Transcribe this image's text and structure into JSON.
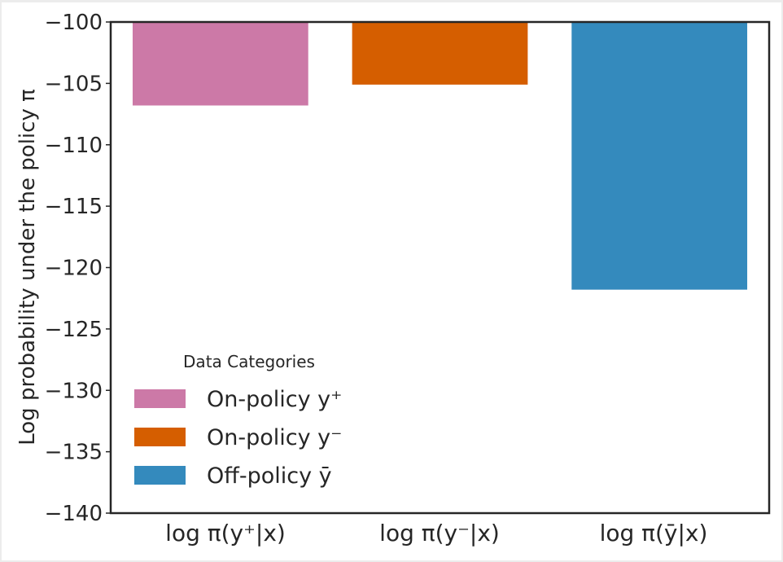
{
  "chart_data": {
    "type": "bar",
    "categories": [
      "log π(y⁺|x)",
      "log π(y⁻|x)",
      "log π(ȳ|x)"
    ],
    "values": [
      -106.8,
      -105.1,
      -121.8
    ],
    "colors": [
      "#cc79a7",
      "#d55e00",
      "#348abd"
    ],
    "ylabel": "Log probability under the policy π",
    "ylim": [
      -140,
      -100
    ],
    "yticks": [
      -100,
      -105,
      -110,
      -115,
      -120,
      -125,
      -130,
      -135,
      -140
    ],
    "ytick_labels": [
      "−100",
      "−105",
      "−110",
      "−115",
      "−120",
      "−125",
      "−130",
      "−135",
      "−140"
    ],
    "grid": false,
    "legend": {
      "title": "Data Categories",
      "placement": "lower-left",
      "entries": [
        "On-policy y⁺",
        "On-policy y⁻",
        "Off-policy ȳ"
      ]
    }
  }
}
